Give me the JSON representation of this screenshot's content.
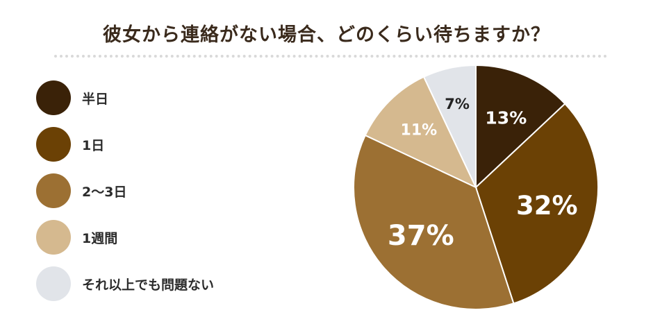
{
  "title": "彼女から連絡がない場合、どのくらい待ちますか？",
  "chart_data": {
    "type": "pie",
    "title": "彼女から連絡がない場合、どのくらい待ちますか？",
    "categories": [
      "半日",
      "1日",
      "2〜3日",
      "1週間",
      "それ以上でも問題ない"
    ],
    "values": [
      13,
      32,
      37,
      11,
      7
    ],
    "labels": [
      "13%",
      "32%",
      "37%",
      "11%",
      "7%"
    ],
    "colors": [
      "#3a2208",
      "#6b4105",
      "#9c7033",
      "#d5b98f",
      "#e1e4e9"
    ],
    "label_colors": [
      "#ffffff",
      "#ffffff",
      "#ffffff",
      "#ffffff",
      "#222222"
    ],
    "start_angle": "12 o'clock",
    "direction": "clockwise",
    "legend": "left"
  }
}
